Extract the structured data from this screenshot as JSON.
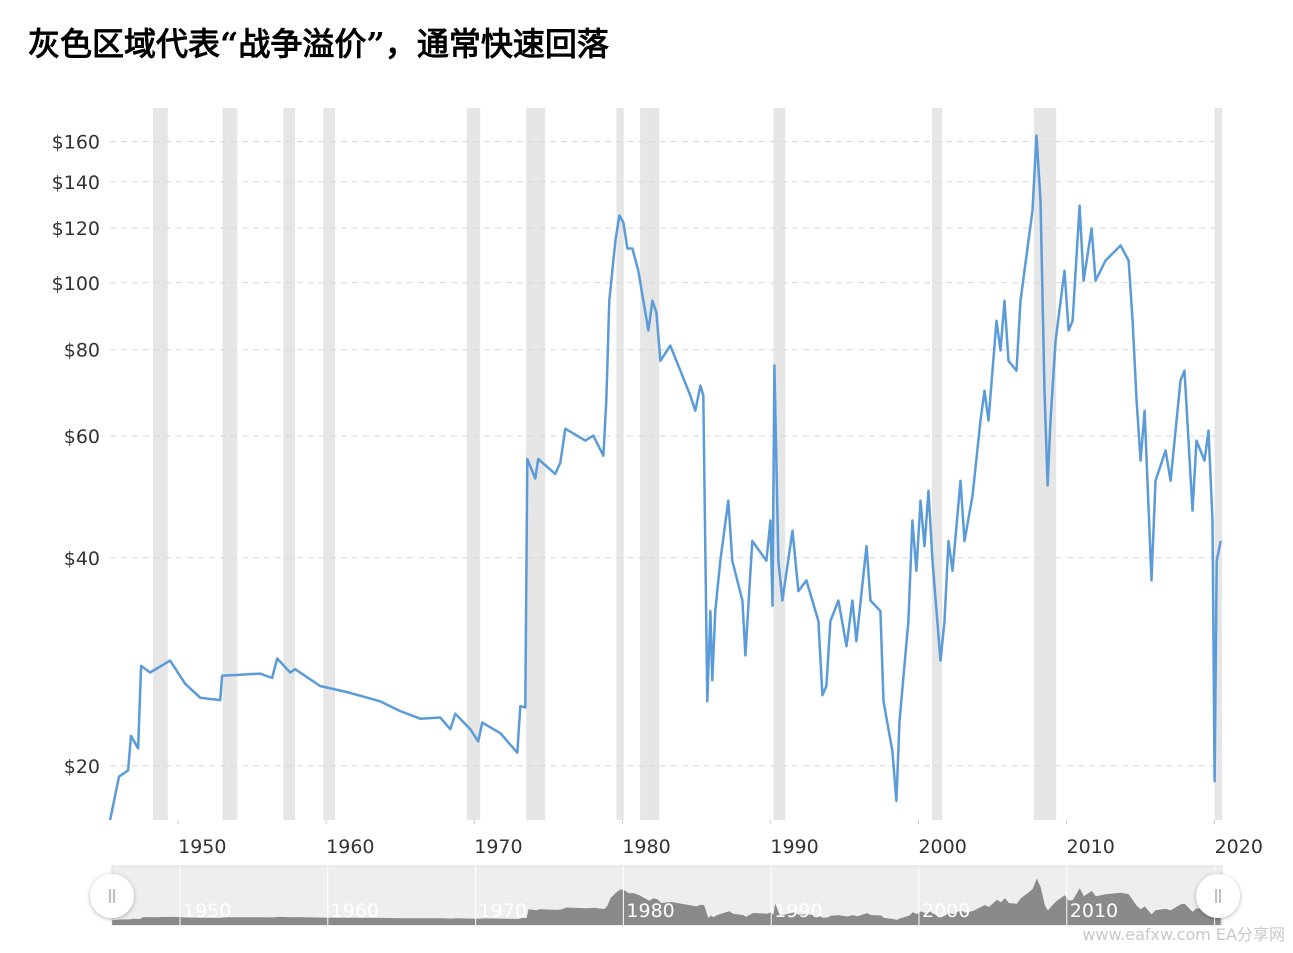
{
  "chart_data": {
    "type": "line",
    "title": "灰色区域代表“战争溢价”，通常快速回落",
    "watermark": "www.eafxw.com  EA分享网",
    "color": "#5b9bd8",
    "log_scale": true,
    "grid": true,
    "shade_color": "#e6e6e6",
    "xlim": [
      1945.4,
      2020.5
    ],
    "xticks": [
      1950,
      1960,
      1970,
      1980,
      1990,
      2000,
      2010,
      2020
    ],
    "ylim": [
      16.7,
      179
    ],
    "yticks": [
      {
        "value": 20,
        "label": "$20"
      },
      {
        "value": 40,
        "label": "$40"
      },
      {
        "value": 60,
        "label": "$60"
      },
      {
        "value": 80,
        "label": "$80"
      },
      {
        "value": 100,
        "label": "$100"
      },
      {
        "value": 120,
        "label": "$120"
      },
      {
        "value": 140,
        "label": "$140"
      },
      {
        "value": 160,
        "label": "$160"
      }
    ],
    "shaded_periods": [
      [
        1948.3,
        1949.3
      ],
      [
        1953.0,
        1954.0
      ],
      [
        1957.1,
        1957.9
      ],
      [
        1959.8,
        1960.6
      ],
      [
        1969.5,
        1970.4
      ],
      [
        1973.5,
        1974.8
      ],
      [
        1979.6,
        1980.1
      ],
      [
        1981.2,
        1982.5
      ],
      [
        1990.2,
        1991.0
      ],
      [
        2000.9,
        2001.6
      ],
      [
        2007.8,
        2009.3
      ],
      [
        2020.0,
        2020.5
      ]
    ],
    "x": [
      1945.41,
      1946.01,
      1946.62,
      1946.82,
      1947.3,
      1947.5,
      1948.11,
      1949.46,
      1950.47,
      1951.49,
      1952.84,
      1952.97,
      1955.54,
      1956.35,
      1956.69,
      1957.57,
      1957.91,
      1959.59,
      1961.62,
      1963.65,
      1965.0,
      1966.35,
      1967.7,
      1968.38,
      1968.72,
      1969.73,
      1970.27,
      1970.54,
      1971.76,
      1972.91,
      1973.11,
      1973.45,
      1973.58,
      1974.12,
      1974.32,
      1975.47,
      1975.81,
      1976.15,
      1977.5,
      1978.04,
      1978.72,
      1978.92,
      1979.12,
      1979.53,
      1979.8,
      1980.07,
      1980.34,
      1980.68,
      1981.08,
      1981.76,
      1982.03,
      1982.3,
      1982.57,
      1983.24,
      1983.92,
      1984.59,
      1984.93,
      1985.27,
      1985.47,
      1985.74,
      1985.95,
      1986.08,
      1986.28,
      1986.62,
      1987.16,
      1987.43,
      1988.11,
      1988.31,
      1988.78,
      1989.73,
      1990.0,
      1990.14,
      1990.27,
      1990.54,
      1990.81,
      1991.49,
      1991.89,
      1992.43,
      1993.24,
      1993.51,
      1993.78,
      1994.05,
      1994.59,
      1995.14,
      1995.54,
      1995.81,
      1996.49,
      1996.76,
      1997.43,
      1997.64,
      1998.24,
      1998.51,
      1998.72,
      1999.32,
      1999.59,
      1999.86,
      2000.14,
      2000.41,
      2000.68,
      2000.95,
      2001.49,
      2001.76,
      2002.03,
      2002.3,
      2002.84,
      2003.11,
      2003.65,
      2004.19,
      2004.46,
      2004.73,
      2005.27,
      2005.54,
      2005.81,
      2006.08,
      2006.62,
      2006.89,
      2007.43,
      2007.7,
      2007.97,
      2008.24,
      2008.51,
      2008.72,
      2008.92,
      2009.26,
      2009.86,
      2010.14,
      2010.41,
      2010.88,
      2011.15,
      2011.69,
      2011.96,
      2012.64,
      2013.31,
      2013.65,
      2014.19,
      2014.46,
      2014.73,
      2015.0,
      2015.27,
      2015.74,
      2016.01,
      2016.69,
      2017.03,
      2017.7,
      2017.97,
      2018.51,
      2018.78,
      2019.32,
      2019.59,
      2019.86,
      2020.0,
      2020.14,
      2020.41
    ],
    "values": [
      16.7,
      19.3,
      19.7,
      22.1,
      21.2,
      27.9,
      27.3,
      28.4,
      26.3,
      25.1,
      24.9,
      27.0,
      27.2,
      26.8,
      28.6,
      27.3,
      27.6,
      26.1,
      25.5,
      24.8,
      24.0,
      23.4,
      23.5,
      22.6,
      23.8,
      22.6,
      21.7,
      23.1,
      22.3,
      20.9,
      24.4,
      24.3,
      55.6,
      52.1,
      55.6,
      52.9,
      54.9,
      61.5,
      59.1,
      60.1,
      56.2,
      67.5,
      94.2,
      115.1,
      125.1,
      122.2,
      112.1,
      112.1,
      104.1,
      85.3,
      94.2,
      90.5,
      77.1,
      81.1,
      74.6,
      68.7,
      65.3,
      71.0,
      68.7,
      24.8,
      33.5,
      26.6,
      33.5,
      39.6,
      48.4,
      39.6,
      34.7,
      28.9,
      42.3,
      39.6,
      45.3,
      34.1,
      75.9,
      39.6,
      34.7,
      43.8,
      35.8,
      37.1,
      32.4,
      25.3,
      26.1,
      32.4,
      34.7,
      29.8,
      34.7,
      30.3,
      41.6,
      34.7,
      33.5,
      24.8,
      21.0,
      17.8,
      23.2,
      32.4,
      45.3,
      38.3,
      48.4,
      41.6,
      50.0,
      39.6,
      28.4,
      32.4,
      42.3,
      38.3,
      51.7,
      42.3,
      49.2,
      63.2,
      69.8,
      63.2,
      88.1,
      79.8,
      94.2,
      77.1,
      74.6,
      94.2,
      115.1,
      127.2,
      163.3,
      131.5,
      69.8,
      50.9,
      63.2,
      82.5,
      104.1,
      85.3,
      88.1,
      129.3,
      100.7,
      119.8,
      100.7,
      107.7,
      111.3,
      113.2,
      107.7,
      88.1,
      67.5,
      55.3,
      65.3,
      37.1,
      51.7,
      57.2,
      51.7,
      72.2,
      74.6,
      46.8,
      59.1,
      55.3,
      61.1,
      45.3,
      19.0,
      39.6,
      42.3
    ]
  }
}
